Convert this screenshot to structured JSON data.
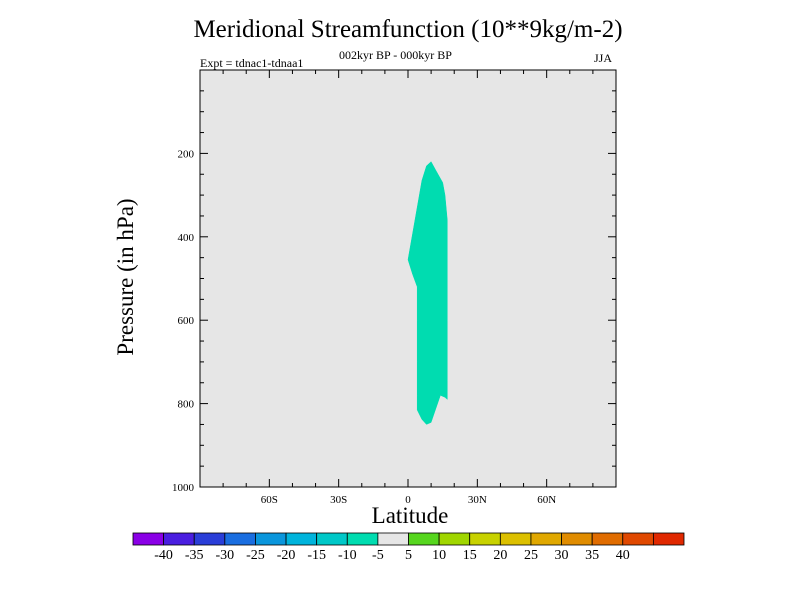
{
  "chart_data": {
    "type": "heatmap",
    "title": "Meridional Streamfunction (10**9kg/m-2)",
    "experiment_label": "Expt = tdnac1-tdnaa1",
    "period_label": "002kyr BP - 000kyr BP",
    "season_label": "JJA",
    "xlabel": "Latitude",
    "ylabel": "Pressure (in hPa)",
    "xlim": [
      -90,
      90
    ],
    "ylim": [
      1000,
      0
    ],
    "x_ticks": [
      {
        "value": -60,
        "label": "60S"
      },
      {
        "value": -30,
        "label": "30S"
      },
      {
        "value": 0,
        "label": "0"
      },
      {
        "value": 30,
        "label": "30N"
      },
      {
        "value": 60,
        "label": "60N"
      }
    ],
    "y_ticks": [
      {
        "value": 200,
        "label": "200"
      },
      {
        "value": 400,
        "label": "400"
      },
      {
        "value": 600,
        "label": "600"
      },
      {
        "value": 800,
        "label": "800"
      },
      {
        "value": 1000,
        "label": "1000"
      }
    ],
    "background_color": "#e6e6e6",
    "contour_regions": [
      {
        "range": [
          -10,
          -5
        ],
        "color": "#00dcb0",
        "outline_lat_pressure": [
          [
            0,
            455
          ],
          [
            6,
            265
          ],
          [
            8,
            230
          ],
          [
            10,
            220
          ],
          [
            12,
            240
          ],
          [
            15,
            270
          ],
          [
            16,
            300
          ],
          [
            17,
            360
          ],
          [
            17,
            600
          ],
          [
            17,
            745
          ],
          [
            17,
            790
          ],
          [
            16,
            785
          ],
          [
            14,
            780
          ],
          [
            10,
            845
          ],
          [
            8,
            850
          ],
          [
            6,
            838
          ],
          [
            4,
            815
          ],
          [
            4,
            780
          ],
          [
            4,
            700
          ],
          [
            4,
            600
          ],
          [
            4,
            520
          ],
          [
            2,
            490
          ],
          [
            0,
            455
          ]
        ]
      }
    ],
    "colorbar": {
      "colors": [
        "#8a00e6",
        "#4a1ee0",
        "#2a3ed8",
        "#1a6ee0",
        "#0a96dc",
        "#00b4dc",
        "#00c8c8",
        "#00dcb0",
        "#e6e6e6",
        "#56d61e",
        "#a0d600",
        "#c8d200",
        "#dcc000",
        "#e0a800",
        "#e08c00",
        "#e06c00",
        "#e04800",
        "#e02800"
      ],
      "labels": [
        "-40",
        "-35",
        "-30",
        "-25",
        "-20",
        "-15",
        "-10",
        "-5",
        "5",
        "10",
        "15",
        "20",
        "25",
        "30",
        "35",
        "40"
      ]
    }
  }
}
